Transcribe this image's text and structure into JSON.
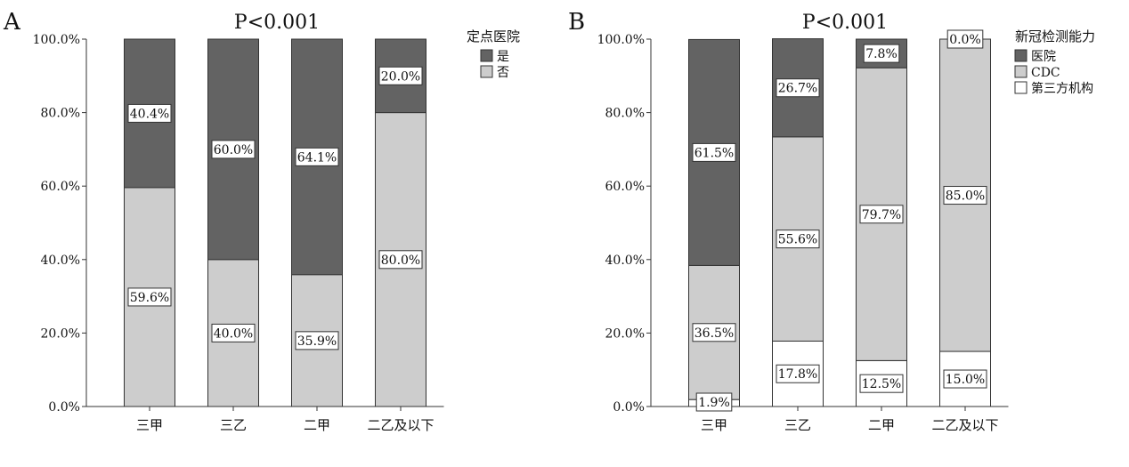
{
  "panels": [
    {
      "letter": "A",
      "title": "P<0.001",
      "legend_title": "定点医院",
      "chart_data": {
        "type": "bar",
        "stacked": true,
        "categories": [
          "三甲",
          "三乙",
          "二甲",
          "二乙及以下"
        ],
        "series": [
          {
            "name": "否",
            "color": "#cdcdcd",
            "values": [
              59.6,
              40.0,
              35.9,
              80.0
            ],
            "labels": [
              "59.6%",
              "40.0%",
              "35.9%",
              "80.0%"
            ]
          },
          {
            "name": "是",
            "color": "#636363",
            "values": [
              40.4,
              60.0,
              64.1,
              20.0
            ],
            "labels": [
              "40.4%",
              "60.0%",
              "64.1%",
              "20.0%"
            ]
          }
        ],
        "legend_order": [
          1,
          0
        ],
        "ylim": [
          0,
          100
        ],
        "yticks": [
          "0.0%",
          "20.0%",
          "40.0%",
          "60.0%",
          "80.0%",
          "100.0%"
        ],
        "grid": false,
        "legend_position": "top-right"
      }
    },
    {
      "letter": "B",
      "title": "P<0.001",
      "legend_title": "新冠检测能力",
      "chart_data": {
        "type": "bar",
        "stacked": true,
        "categories": [
          "三甲",
          "三乙",
          "二甲",
          "二乙及以下"
        ],
        "series": [
          {
            "name": "第三方机构",
            "color": "#ffffff",
            "values": [
              1.9,
              17.8,
              12.5,
              15.0
            ],
            "labels": [
              "1.9%",
              "17.8%",
              "12.5%",
              "15.0%"
            ]
          },
          {
            "name": "CDC",
            "color": "#cdcdcd",
            "values": [
              36.5,
              55.6,
              79.7,
              85.0
            ],
            "labels": [
              "36.5%",
              "55.6%",
              "79.7%",
              "85.0%"
            ]
          },
          {
            "name": "医院",
            "color": "#636363",
            "values": [
              61.5,
              26.7,
              7.8,
              0.0
            ],
            "labels": [
              "61.5%",
              "26.7%",
              "7.8%",
              "0.0%"
            ]
          }
        ],
        "legend_order": [
          2,
          1,
          0
        ],
        "ylim": [
          0,
          100
        ],
        "yticks": [
          "0.0%",
          "20.0%",
          "40.0%",
          "60.0%",
          "80.0%",
          "100.0%"
        ],
        "grid": false,
        "legend_position": "top-right"
      }
    }
  ]
}
